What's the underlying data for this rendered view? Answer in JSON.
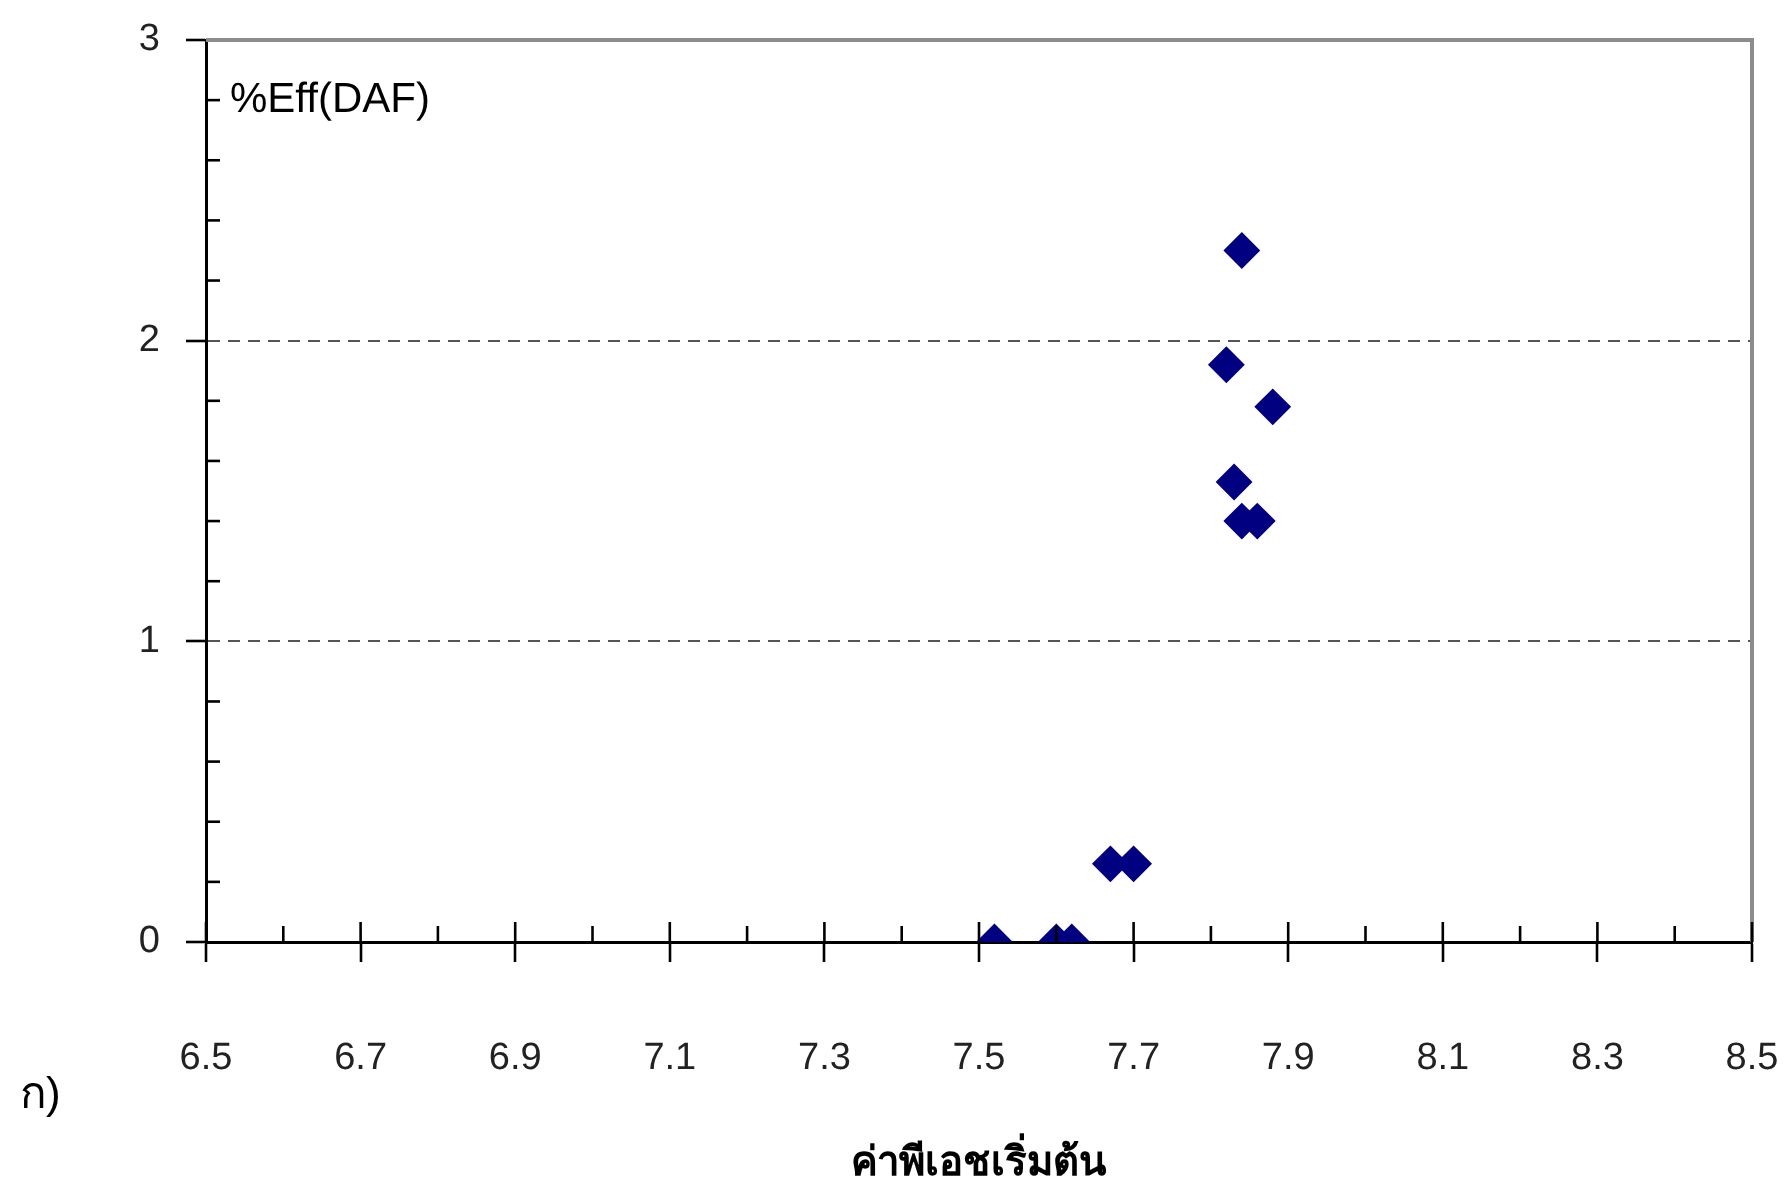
{
  "chart_data": {
    "type": "scatter",
    "xlabel": "ค่าพีเอชเริ่มต้น",
    "ylabel": "%Eff(DAF)",
    "annotations": [
      "ก)"
    ],
    "x": [
      7.52,
      7.6,
      7.62,
      7.67,
      7.7,
      7.82,
      7.83,
      7.84,
      7.84,
      7.86,
      7.88
    ],
    "values": [
      0,
      0,
      0,
      0.26,
      0.26,
      1.92,
      1.53,
      1.4,
      2.3,
      1.4,
      1.78
    ],
    "color": "#000080",
    "marker": "diamond",
    "xlim": [
      6.5,
      8.5
    ],
    "xticks": [
      6.5,
      {
        "value": 6.6,
        "label": null
      },
      6.7,
      {
        "value": 6.8,
        "label": null
      },
      6.9,
      {
        "value": 7.0,
        "label": null
      },
      7.1,
      {
        "value": 7.2,
        "label": null
      },
      7.3,
      {
        "value": 7.4,
        "label": null
      },
      7.5,
      {
        "value": 7.6,
        "label": null
      },
      7.7,
      {
        "value": 7.8,
        "label": null
      },
      7.9,
      {
        "value": 8.0,
        "label": null
      },
      8.1,
      {
        "value": 8.2,
        "label": null
      },
      8.3,
      {
        "value": 8.4,
        "label": null
      },
      8.5
    ],
    "ylim": [
      0,
      3
    ],
    "yticks": [
      0,
      {
        "value": 0.2,
        "label": null
      },
      {
        "value": 0.4,
        "label": null
      },
      {
        "value": 0.6,
        "label": null
      },
      {
        "value": 0.8,
        "label": null
      },
      1,
      {
        "value": 1.2,
        "label": null
      },
      {
        "value": 1.4,
        "label": null
      },
      {
        "value": 1.6,
        "label": null
      },
      {
        "value": 1.8,
        "label": null
      },
      2,
      {
        "value": 2.2,
        "label": null
      },
      {
        "value": 2.4,
        "label": null
      },
      {
        "value": 2.6,
        "label": null
      },
      {
        "value": 2.8,
        "label": null
      },
      3
    ],
    "grid": "y"
  }
}
